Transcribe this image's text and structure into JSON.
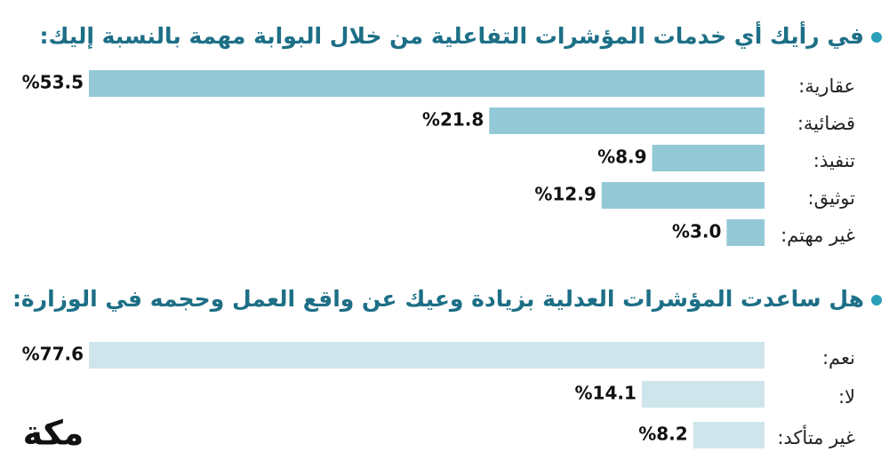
{
  "chart_data": [
    {
      "type": "bar",
      "title": "في رأيك أي خدمات المؤشرات التفاعلية من خلال البوابة مهمة بالنسبة إليك:",
      "categories": [
        "عقارية:",
        "قضائية:",
        "تنفيذ:",
        "توثيق:",
        "غير مهتم:"
      ],
      "values": [
        53.5,
        21.8,
        8.9,
        12.9,
        3.0
      ],
      "value_labels": [
        "%53.5",
        "%21.8",
        "%8.9",
        "%12.9",
        "%3.0"
      ],
      "color": "#93c9d6"
    },
    {
      "type": "bar",
      "title": "هل ساعدت المؤشرات العدلية بزيادة وعيك عن واقع العمل وحجمه في الوزارة:",
      "categories": [
        "نعم:",
        "لا:",
        "غير متأكد:"
      ],
      "values": [
        77.6,
        14.1,
        8.2
      ],
      "value_labels": [
        "%77.6",
        "%14.1",
        "%8.2"
      ],
      "color": "#cfe5ec"
    }
  ],
  "logo": "مكة"
}
